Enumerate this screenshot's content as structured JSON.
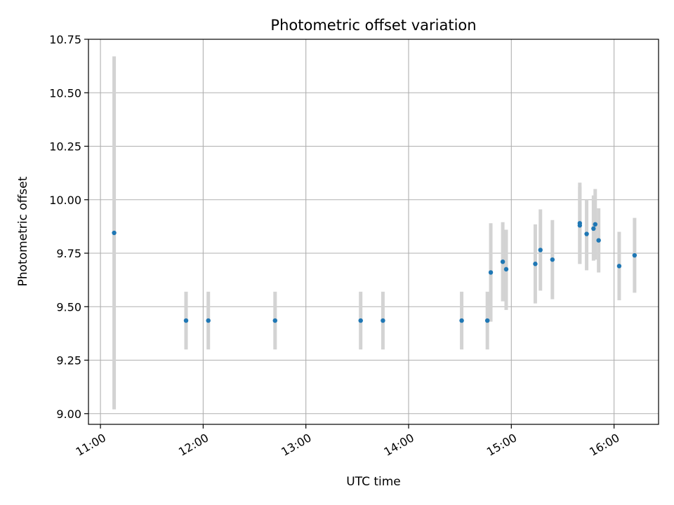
{
  "chart_data": {
    "type": "scatter",
    "title": "Photometric offset variation",
    "xlabel": "UTC time",
    "ylabel": "Photometric offset",
    "x_unit": "UTC time (HH:MM)",
    "xlim": [
      "10:53",
      "16:26"
    ],
    "ylim": [
      8.95,
      10.75
    ],
    "x_ticks": [
      "11:00",
      "12:00",
      "13:00",
      "14:00",
      "15:00",
      "16:00"
    ],
    "y_ticks": [
      "9.00",
      "9.25",
      "9.50",
      "9.75",
      "10.00",
      "10.25",
      "10.50",
      "10.75"
    ],
    "grid": true,
    "colors": {
      "point": "#1f77b4",
      "error_bar": "#d3d3d3",
      "grid": "#b0b0b0"
    },
    "points": [
      {
        "x": "11:08",
        "y": 9.845,
        "ylow": 9.02,
        "yhigh": 10.67
      },
      {
        "x": "11:50",
        "y": 9.435,
        "ylow": 9.3,
        "yhigh": 9.57
      },
      {
        "x": "12:03",
        "y": 9.435,
        "ylow": 9.3,
        "yhigh": 9.57
      },
      {
        "x": "12:42",
        "y": 9.435,
        "ylow": 9.3,
        "yhigh": 9.57
      },
      {
        "x": "13:32",
        "y": 9.435,
        "ylow": 9.3,
        "yhigh": 9.57
      },
      {
        "x": "13:45",
        "y": 9.435,
        "ylow": 9.3,
        "yhigh": 9.57
      },
      {
        "x": "14:31",
        "y": 9.435,
        "ylow": 9.3,
        "yhigh": 9.57
      },
      {
        "x": "14:46",
        "y": 9.435,
        "ylow": 9.3,
        "yhigh": 9.57
      },
      {
        "x": "14:48",
        "y": 9.66,
        "ylow": 9.43,
        "yhigh": 9.89
      },
      {
        "x": "14:55",
        "y": 9.71,
        "ylow": 9.525,
        "yhigh": 9.895
      },
      {
        "x": "14:57",
        "y": 9.675,
        "ylow": 9.485,
        "yhigh": 9.86
      },
      {
        "x": "15:14",
        "y": 9.7,
        "ylow": 9.515,
        "yhigh": 9.885
      },
      {
        "x": "15:17",
        "y": 9.765,
        "ylow": 9.575,
        "yhigh": 9.955
      },
      {
        "x": "15:24",
        "y": 9.72,
        "ylow": 9.535,
        "yhigh": 9.905
      },
      {
        "x": "15:40",
        "y": 9.89,
        "ylow": 9.7,
        "yhigh": 10.08
      },
      {
        "x": "15:40",
        "y": 9.88,
        "ylow": 9.7,
        "yhigh": 10.06
      },
      {
        "x": "15:44",
        "y": 9.84,
        "ylow": 9.67,
        "yhigh": 10.0
      },
      {
        "x": "15:48",
        "y": 9.865,
        "ylow": 9.715,
        "yhigh": 10.02
      },
      {
        "x": "15:49",
        "y": 9.885,
        "ylow": 9.72,
        "yhigh": 10.05
      },
      {
        "x": "15:51",
        "y": 9.81,
        "ylow": 9.66,
        "yhigh": 9.96
      },
      {
        "x": "16:03",
        "y": 9.69,
        "ylow": 9.53,
        "yhigh": 9.85
      },
      {
        "x": "16:12",
        "y": 9.74,
        "ylow": 9.565,
        "yhigh": 9.915
      }
    ]
  }
}
